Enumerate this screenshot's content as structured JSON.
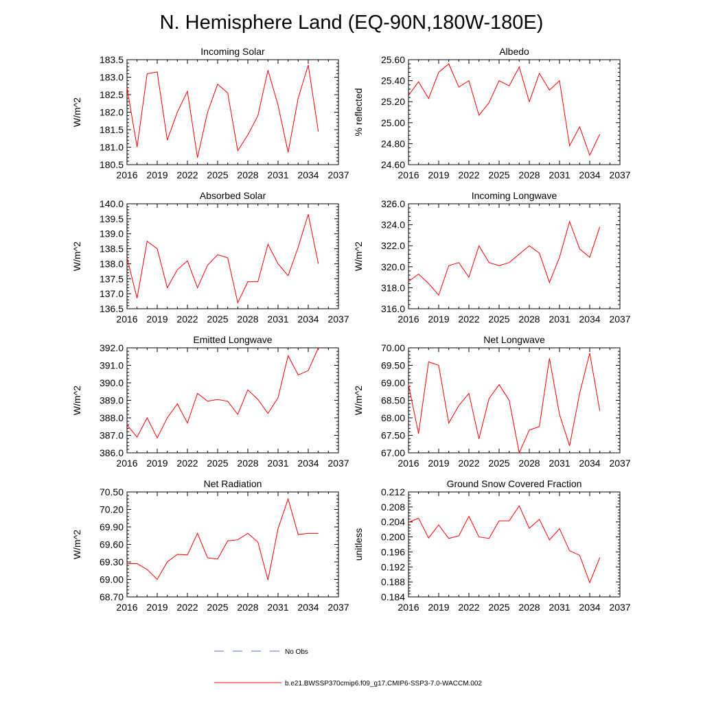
{
  "figure_title": "N. Hemisphere Land (EQ-90N,180W-180E)",
  "line_color": "#ff0000",
  "obs_color": "#5a6ec8",
  "legend": {
    "obs_label": "No Obs",
    "model_label": "b.e21.BWSSP370cmip6.f09_g17.CMIP6-SSP3-7.0-WACCM.002"
  },
  "chart_data": [
    {
      "type": "line",
      "title": "Incoming Solar",
      "ylabel": "W/m^2",
      "xlim": [
        2016,
        2037
      ],
      "xticks": [
        2016,
        2019,
        2022,
        2025,
        2028,
        2031,
        2034,
        2037
      ],
      "ylim": [
        180.5,
        183.5
      ],
      "yticks": [
        "180.5",
        "181.0",
        "181.5",
        "182.0",
        "182.5",
        "183.0",
        "183.5"
      ],
      "series": [
        {
          "x": [
            2016,
            2017,
            2018,
            2019,
            2020,
            2021,
            2022,
            2023,
            2024,
            2025,
            2026,
            2027,
            2028,
            2029,
            2030,
            2031,
            2032,
            2033,
            2034,
            2035
          ],
          "values": [
            182.7,
            181.0,
            183.1,
            183.15,
            181.2,
            182.0,
            182.6,
            180.7,
            182.0,
            182.8,
            182.55,
            180.9,
            181.35,
            181.9,
            183.2,
            182.2,
            180.85,
            182.4,
            183.35,
            181.45
          ]
        }
      ]
    },
    {
      "type": "line",
      "title": "Albedo",
      "ylabel": "% reflected",
      "xlim": [
        2016,
        2037
      ],
      "xticks": [
        2016,
        2019,
        2022,
        2025,
        2028,
        2031,
        2034,
        2037
      ],
      "ylim": [
        24.6,
        25.6
      ],
      "yticks": [
        "24.60",
        "24.80",
        "25.00",
        "25.20",
        "25.40",
        "25.60"
      ],
      "series": [
        {
          "x": [
            2016,
            2017,
            2018,
            2019,
            2020,
            2021,
            2022,
            2023,
            2024,
            2025,
            2026,
            2027,
            2028,
            2029,
            2030,
            2031,
            2032,
            2033,
            2034,
            2035
          ],
          "values": [
            25.26,
            25.39,
            25.23,
            25.48,
            25.56,
            25.34,
            25.4,
            25.07,
            25.19,
            25.4,
            25.35,
            25.53,
            25.2,
            25.47,
            25.31,
            25.4,
            24.78,
            24.96,
            24.69,
            24.89
          ]
        }
      ]
    },
    {
      "type": "line",
      "title": "Absorbed Solar",
      "ylabel": "W/m^2",
      "xlim": [
        2016,
        2037
      ],
      "xticks": [
        2016,
        2019,
        2022,
        2025,
        2028,
        2031,
        2034,
        2037
      ],
      "ylim": [
        136.5,
        140.0
      ],
      "yticks": [
        "136.5",
        "137.0",
        "137.5",
        "138.0",
        "138.5",
        "139.0",
        "139.5",
        "140.0"
      ],
      "series": [
        {
          "x": [
            2016,
            2017,
            2018,
            2019,
            2020,
            2021,
            2022,
            2023,
            2024,
            2025,
            2026,
            2027,
            2028,
            2029,
            2030,
            2031,
            2032,
            2033,
            2034,
            2035
          ],
          "values": [
            138.2,
            136.85,
            138.75,
            138.5,
            137.2,
            137.8,
            138.1,
            137.2,
            137.95,
            138.3,
            138.2,
            136.7,
            137.4,
            137.4,
            138.65,
            138.0,
            137.6,
            138.55,
            139.65,
            138.0
          ]
        }
      ]
    },
    {
      "type": "line",
      "title": "Incoming Longwave",
      "ylabel": "W/m^2",
      "xlim": [
        2016,
        2037
      ],
      "xticks": [
        2016,
        2019,
        2022,
        2025,
        2028,
        2031,
        2034,
        2037
      ],
      "ylim": [
        316.0,
        326.0
      ],
      "yticks": [
        "316.0",
        "318.0",
        "320.0",
        "322.0",
        "324.0",
        "326.0"
      ],
      "series": [
        {
          "x": [
            2016,
            2017,
            2018,
            2019,
            2020,
            2021,
            2022,
            2023,
            2024,
            2025,
            2026,
            2027,
            2028,
            2029,
            2030,
            2031,
            2032,
            2033,
            2034,
            2035
          ],
          "values": [
            318.6,
            319.3,
            318.4,
            317.3,
            320.1,
            320.4,
            319.0,
            322.0,
            320.4,
            320.1,
            320.4,
            321.2,
            322.0,
            321.3,
            318.5,
            320.9,
            324.3,
            321.7,
            320.9,
            323.8
          ]
        }
      ]
    },
    {
      "type": "line",
      "title": "Emitted Longwave",
      "ylabel": "W/m^2",
      "xlim": [
        2016,
        2037
      ],
      "xticks": [
        2016,
        2019,
        2022,
        2025,
        2028,
        2031,
        2034,
        2037
      ],
      "ylim": [
        386.0,
        392.0
      ],
      "yticks": [
        "386.0",
        "387.0",
        "388.0",
        "389.0",
        "390.0",
        "391.0",
        "392.0"
      ],
      "series": [
        {
          "x": [
            2016,
            2017,
            2018,
            2019,
            2020,
            2021,
            2022,
            2023,
            2024,
            2025,
            2026,
            2027,
            2028,
            2029,
            2030,
            2031,
            2032,
            2033,
            2034,
            2035
          ],
          "values": [
            387.6,
            386.9,
            388.0,
            386.85,
            388.0,
            388.8,
            387.7,
            389.4,
            388.95,
            389.05,
            388.95,
            388.2,
            389.6,
            389.05,
            388.25,
            389.15,
            391.55,
            390.45,
            390.7,
            392.0
          ]
        }
      ]
    },
    {
      "type": "line",
      "title": "Net Longwave",
      "ylabel": "W/m^2",
      "xlim": [
        2016,
        2037
      ],
      "xticks": [
        2016,
        2019,
        2022,
        2025,
        2028,
        2031,
        2034,
        2037
      ],
      "ylim": [
        67.0,
        70.0
      ],
      "yticks": [
        "67.00",
        "67.50",
        "68.00",
        "68.50",
        "69.00",
        "69.50",
        "70.00"
      ],
      "series": [
        {
          "x": [
            2016,
            2017,
            2018,
            2019,
            2020,
            2021,
            2022,
            2023,
            2024,
            2025,
            2026,
            2027,
            2028,
            2029,
            2030,
            2031,
            2032,
            2033,
            2034,
            2035
          ],
          "values": [
            68.95,
            67.55,
            69.6,
            69.5,
            67.85,
            68.35,
            68.7,
            67.4,
            68.55,
            68.95,
            68.5,
            67.0,
            67.65,
            67.75,
            69.7,
            68.1,
            67.2,
            68.7,
            69.85,
            68.2
          ]
        }
      ]
    },
    {
      "type": "line",
      "title": "Net Radiation",
      "ylabel": "W/m^2",
      "xlim": [
        2016,
        2037
      ],
      "xticks": [
        2016,
        2019,
        2022,
        2025,
        2028,
        2031,
        2034,
        2037
      ],
      "ylim": [
        68.7,
        70.5
      ],
      "yticks": [
        "68.70",
        "69.00",
        "69.30",
        "69.60",
        "69.90",
        "70.20",
        "70.50"
      ],
      "series": [
        {
          "x": [
            2016,
            2017,
            2018,
            2019,
            2020,
            2021,
            2022,
            2023,
            2024,
            2025,
            2026,
            2027,
            2028,
            2029,
            2030,
            2031,
            2032,
            2033,
            2034,
            2035
          ],
          "values": [
            69.27,
            69.27,
            69.17,
            69.0,
            69.3,
            69.43,
            69.42,
            69.79,
            69.37,
            69.35,
            69.66,
            69.68,
            69.79,
            69.64,
            68.99,
            69.87,
            70.38,
            69.77,
            69.79,
            69.79
          ]
        }
      ]
    },
    {
      "type": "line",
      "title": "Ground Snow Covered Fraction",
      "ylabel": "unitless",
      "xlim": [
        2016,
        2037
      ],
      "xticks": [
        2016,
        2019,
        2022,
        2025,
        2028,
        2031,
        2034,
        2037
      ],
      "ylim": [
        0.184,
        0.212
      ],
      "yticks": [
        "0.184",
        "0.188",
        "0.192",
        "0.196",
        "0.200",
        "0.204",
        "0.208",
        "0.212"
      ],
      "series": [
        {
          "x": [
            2016,
            2017,
            2018,
            2019,
            2020,
            2021,
            2022,
            2023,
            2024,
            2025,
            2026,
            2027,
            2028,
            2029,
            2030,
            2031,
            2032,
            2033,
            2034,
            2035
          ],
          "values": [
            0.2039,
            0.205,
            0.1997,
            0.2032,
            0.1996,
            0.2003,
            0.2055,
            0.2,
            0.1996,
            0.2043,
            0.2043,
            0.2083,
            0.2023,
            0.2047,
            0.1992,
            0.2022,
            0.1963,
            0.1951,
            0.1878,
            0.1945
          ]
        }
      ]
    }
  ]
}
